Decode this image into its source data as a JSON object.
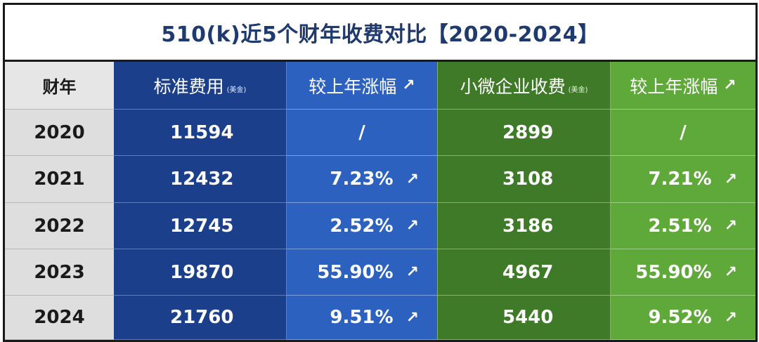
{
  "title": "510(k)近5个财年收费对比【2020-2024】",
  "header": {
    "year": "财年",
    "standard_fee": "标准费用",
    "standard_unit": "(美金)",
    "standard_change": "较上年涨幅",
    "small_fee": "小微企业收费",
    "small_unit": "(美金)",
    "small_change": "较上年涨幅",
    "arrow": "↗"
  },
  "rows": [
    {
      "year": "2020",
      "standard_fee": "11594",
      "standard_change": "/",
      "small_fee": "2899",
      "small_change": "/"
    },
    {
      "year": "2021",
      "standard_fee": "12432",
      "standard_change": "7.23%",
      "small_fee": "3108",
      "small_change": "7.21%"
    },
    {
      "year": "2022",
      "standard_fee": "12745",
      "standard_change": "2.52%",
      "small_fee": "3186",
      "small_change": "2.51%"
    },
    {
      "year": "2023",
      "standard_fee": "19870",
      "standard_change": "55.90%",
      "small_fee": "4967",
      "small_change": "55.90%"
    },
    {
      "year": "2024",
      "standard_fee": "21760",
      "standard_change": "9.51%",
      "small_fee": "5440",
      "small_change": "9.52%"
    }
  ],
  "colors": {
    "title": "#1f3a6e",
    "blue_dark": "#1b3f8a",
    "blue_light": "#2d61c0",
    "green_dark": "#3f7a28",
    "green_light": "#5fa83a",
    "year_bg": "#dedede"
  }
}
